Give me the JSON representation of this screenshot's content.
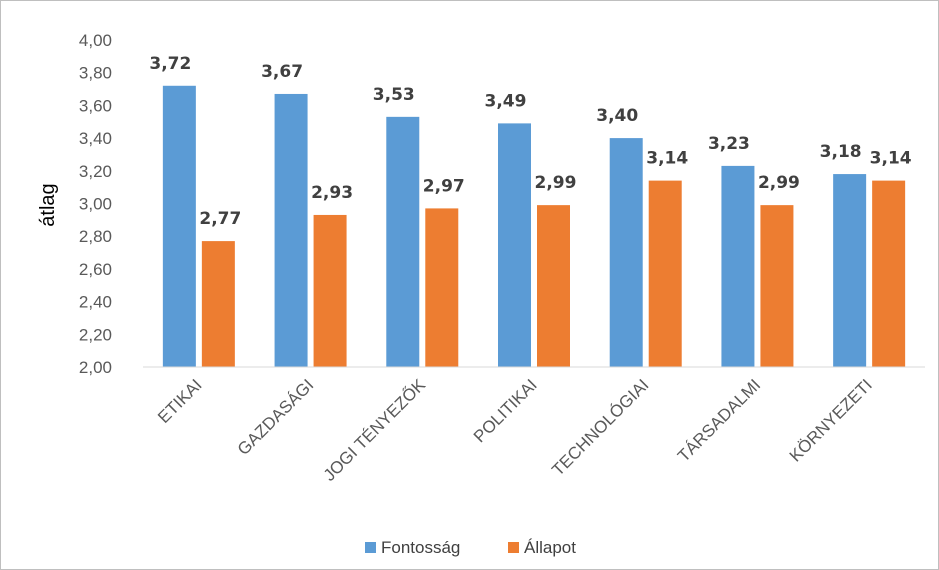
{
  "chart_data": {
    "type": "bar",
    "title": "",
    "xlabel": "",
    "ylabel": "átlag",
    "ylim": [
      2.0,
      4.0
    ],
    "ytick_step": 0.2,
    "ytick_labels": [
      "2,00",
      "2,20",
      "2,40",
      "2,60",
      "2,80",
      "3,00",
      "3,20",
      "3,40",
      "3,60",
      "3,80",
      "4,00"
    ],
    "categories": [
      "ETIKAI",
      "GAZDASÁGI",
      "JOGI TÉNYEZŐK",
      "POLITIKAI",
      "TECHNOLÓGIAI",
      "TÁRSADALMI",
      "KÖRNYEZETI"
    ],
    "series": [
      {
        "name": "Fontosság",
        "color": "#5b9bd5",
        "values": [
          3.72,
          3.67,
          3.53,
          3.49,
          3.4,
          3.23,
          3.18
        ],
        "labels": [
          "3,72",
          "3,67",
          "3,53",
          "3,49",
          "3,40",
          "3,23",
          "3,18"
        ]
      },
      {
        "name": "Állapot",
        "color": "#ed7d31",
        "values": [
          2.77,
          2.93,
          2.97,
          2.99,
          3.14,
          2.99,
          3.14
        ],
        "labels": [
          "2,77",
          "2,93",
          "2,97",
          "2,99",
          "3,14",
          "2,99",
          "3,14"
        ]
      }
    ],
    "grid": false,
    "legend": "bottom"
  }
}
